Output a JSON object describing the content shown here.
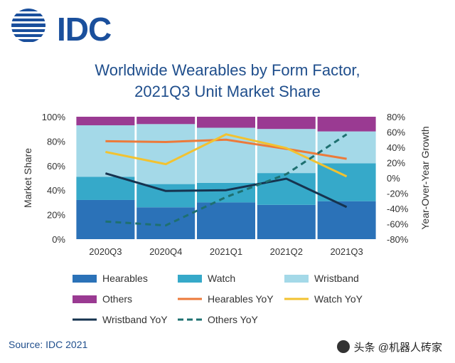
{
  "logo": {
    "text": "IDC"
  },
  "title_line1": "Worldwide Wearables by Form Factor,",
  "title_line2": "2021Q3 Unit Market Share",
  "source": "Source: IDC 2021",
  "watermark": "头条 @机器人砖家",
  "chart_data": {
    "type": "bar",
    "stacked": true,
    "categories": [
      "2020Q3",
      "2020Q4",
      "2021Q1",
      "2021Q2",
      "2021Q3"
    ],
    "ylabel": "Market Share",
    "y2label": "Year-Over-Year  Growth",
    "ylim": [
      0,
      100
    ],
    "y2lim": [
      -80,
      80
    ],
    "yticks": [
      "0%",
      "20%",
      "40%",
      "60%",
      "80%",
      "100%"
    ],
    "y2ticks": [
      "-80%",
      "-60%",
      "-40%",
      "-20%",
      "0%",
      "20%",
      "40%",
      "60%",
      "80%"
    ],
    "series": [
      {
        "name": "Hearables",
        "kind": "bar",
        "color": "#2b72b8",
        "values": [
          32,
          26,
          30,
          28,
          31
        ]
      },
      {
        "name": "Watch",
        "kind": "bar",
        "color": "#36a9c9",
        "values": [
          19,
          19,
          16,
          26,
          31
        ]
      },
      {
        "name": "Wristband",
        "kind": "bar",
        "color": "#a4d9e8",
        "values": [
          42,
          49,
          45,
          36,
          26
        ]
      },
      {
        "name": "Others",
        "kind": "bar",
        "color": "#9a3a92",
        "values": [
          7,
          6,
          9,
          10,
          12
        ]
      },
      {
        "name": "Hearables YoY",
        "kind": "line",
        "axis": "y2",
        "color": "#ec7a3a",
        "values": [
          48,
          47,
          50,
          38,
          25
        ]
      },
      {
        "name": "Watch YoY",
        "kind": "line",
        "axis": "y2",
        "color": "#f2c230",
        "values": [
          34,
          18,
          57,
          39,
          2
        ]
      },
      {
        "name": "Wristband YoY",
        "kind": "line",
        "axis": "y2",
        "color": "#16334f",
        "values": [
          6,
          -17,
          -16,
          -1,
          -38
        ]
      },
      {
        "name": "Others YoY",
        "kind": "dashed",
        "axis": "y2",
        "color": "#1e7070",
        "values": [
          -57,
          -62,
          -25,
          5,
          57
        ]
      }
    ]
  }
}
